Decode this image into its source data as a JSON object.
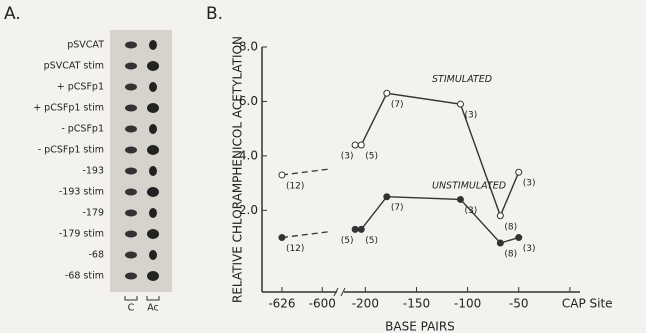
{
  "panel_a": {
    "label": "A.",
    "lanes": [
      "pSVCAT",
      "pSVCAT stim",
      "+ pCSFp1",
      "+ pCSFp1 stim",
      "- pCSFp1",
      "- pCSFp1 stim",
      "-193",
      "-193 stim",
      "-179",
      "-179 stim",
      "-68",
      "-68 stim"
    ],
    "columns": [
      "C",
      "Ac"
    ]
  },
  "chart_data": {
    "type": "line",
    "panel_label": "B.",
    "y_label": "RELATIVE CHLORAMPHENICOL ACETYLATION",
    "x_label": "BASE PAIRS",
    "xlim": [
      -635,
      5
    ],
    "x_break": [
      -595,
      -215
    ],
    "xticks": [
      -626,
      -600,
      -200,
      -150,
      -100,
      -50,
      {
        "value": 0,
        "label": "CAP Site"
      }
    ],
    "ylim": [
      -1,
      8
    ],
    "yticks": [
      {
        "value": 2,
        "label": "2.0"
      },
      {
        "value": 4,
        "label": "4.0"
      },
      {
        "value": 6,
        "label": "6.0"
      },
      {
        "value": 8,
        "label": "8.0"
      }
    ],
    "annotations": [
      "STIMULATED",
      "UNSTIMULATED"
    ],
    "series": [
      {
        "name": "STIMULATED",
        "color": "#333",
        "marker": "open",
        "x": [
          -626,
          -210,
          -204,
          -179,
          -107,
          -68,
          -50
        ],
        "values": [
          3.3,
          4.4,
          4.4,
          6.3,
          5.9,
          1.8,
          3.4
        ],
        "point_labels": [
          "(12)",
          "(3)",
          "(5)",
          "(7)",
          "(3)",
          "(8)",
          "(3)"
        ]
      },
      {
        "name": "UNSTIMULATED",
        "color": "#333",
        "marker": "filled",
        "x": [
          -626,
          -210,
          -204,
          -179,
          -107,
          -68,
          -50
        ],
        "values": [
          1.0,
          1.3,
          1.3,
          2.5,
          2.4,
          0.8,
          1.0
        ],
        "point_labels": [
          "(12)",
          "(5)",
          "(5)",
          "(7)",
          "(3)",
          "(8)",
          "(3)"
        ]
      }
    ]
  }
}
